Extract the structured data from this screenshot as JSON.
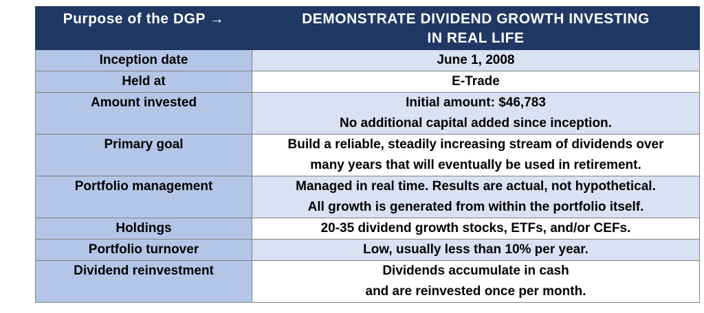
{
  "header": {
    "left": "Purpose of the DGP →",
    "right_lines": [
      "DEMONSTRATE DIVIDEND GROWTH INVESTING",
      "IN REAL LIFE"
    ]
  },
  "rows": [
    {
      "label": "Inception date",
      "lines": [
        "June 1, 2008"
      ]
    },
    {
      "label": "Held at",
      "lines": [
        "E-Trade"
      ]
    },
    {
      "label": "Amount invested",
      "lines": [
        "Initial amount: $46,783",
        "No additional capital added since inception."
      ]
    },
    {
      "label": "Primary goal",
      "lines": [
        "Build a reliable, steadily increasing stream of dividends over",
        "many years that will eventually be used in retirement."
      ]
    },
    {
      "label": "Portfolio management",
      "lines": [
        "Managed in real time. Results are actual, not hypothetical.",
        "All growth is generated from within the portfolio itself."
      ]
    },
    {
      "label": "Holdings",
      "lines": [
        "20-35 dividend growth stocks, ETFs, and/or CEFs."
      ]
    },
    {
      "label": "Portfolio turnover",
      "lines": [
        "Low, usually less than 10% per year."
      ]
    },
    {
      "label": "Dividend reinvestment",
      "lines": [
        "Dividends accumulate in cash",
        "and are reinvested once per month."
      ]
    }
  ],
  "colors": {
    "header_bg": "#1f3864",
    "label_bg": "#b4c6e7",
    "value_bg_shaded": "#d9e2f3",
    "value_bg_plain": "#ffffff"
  }
}
